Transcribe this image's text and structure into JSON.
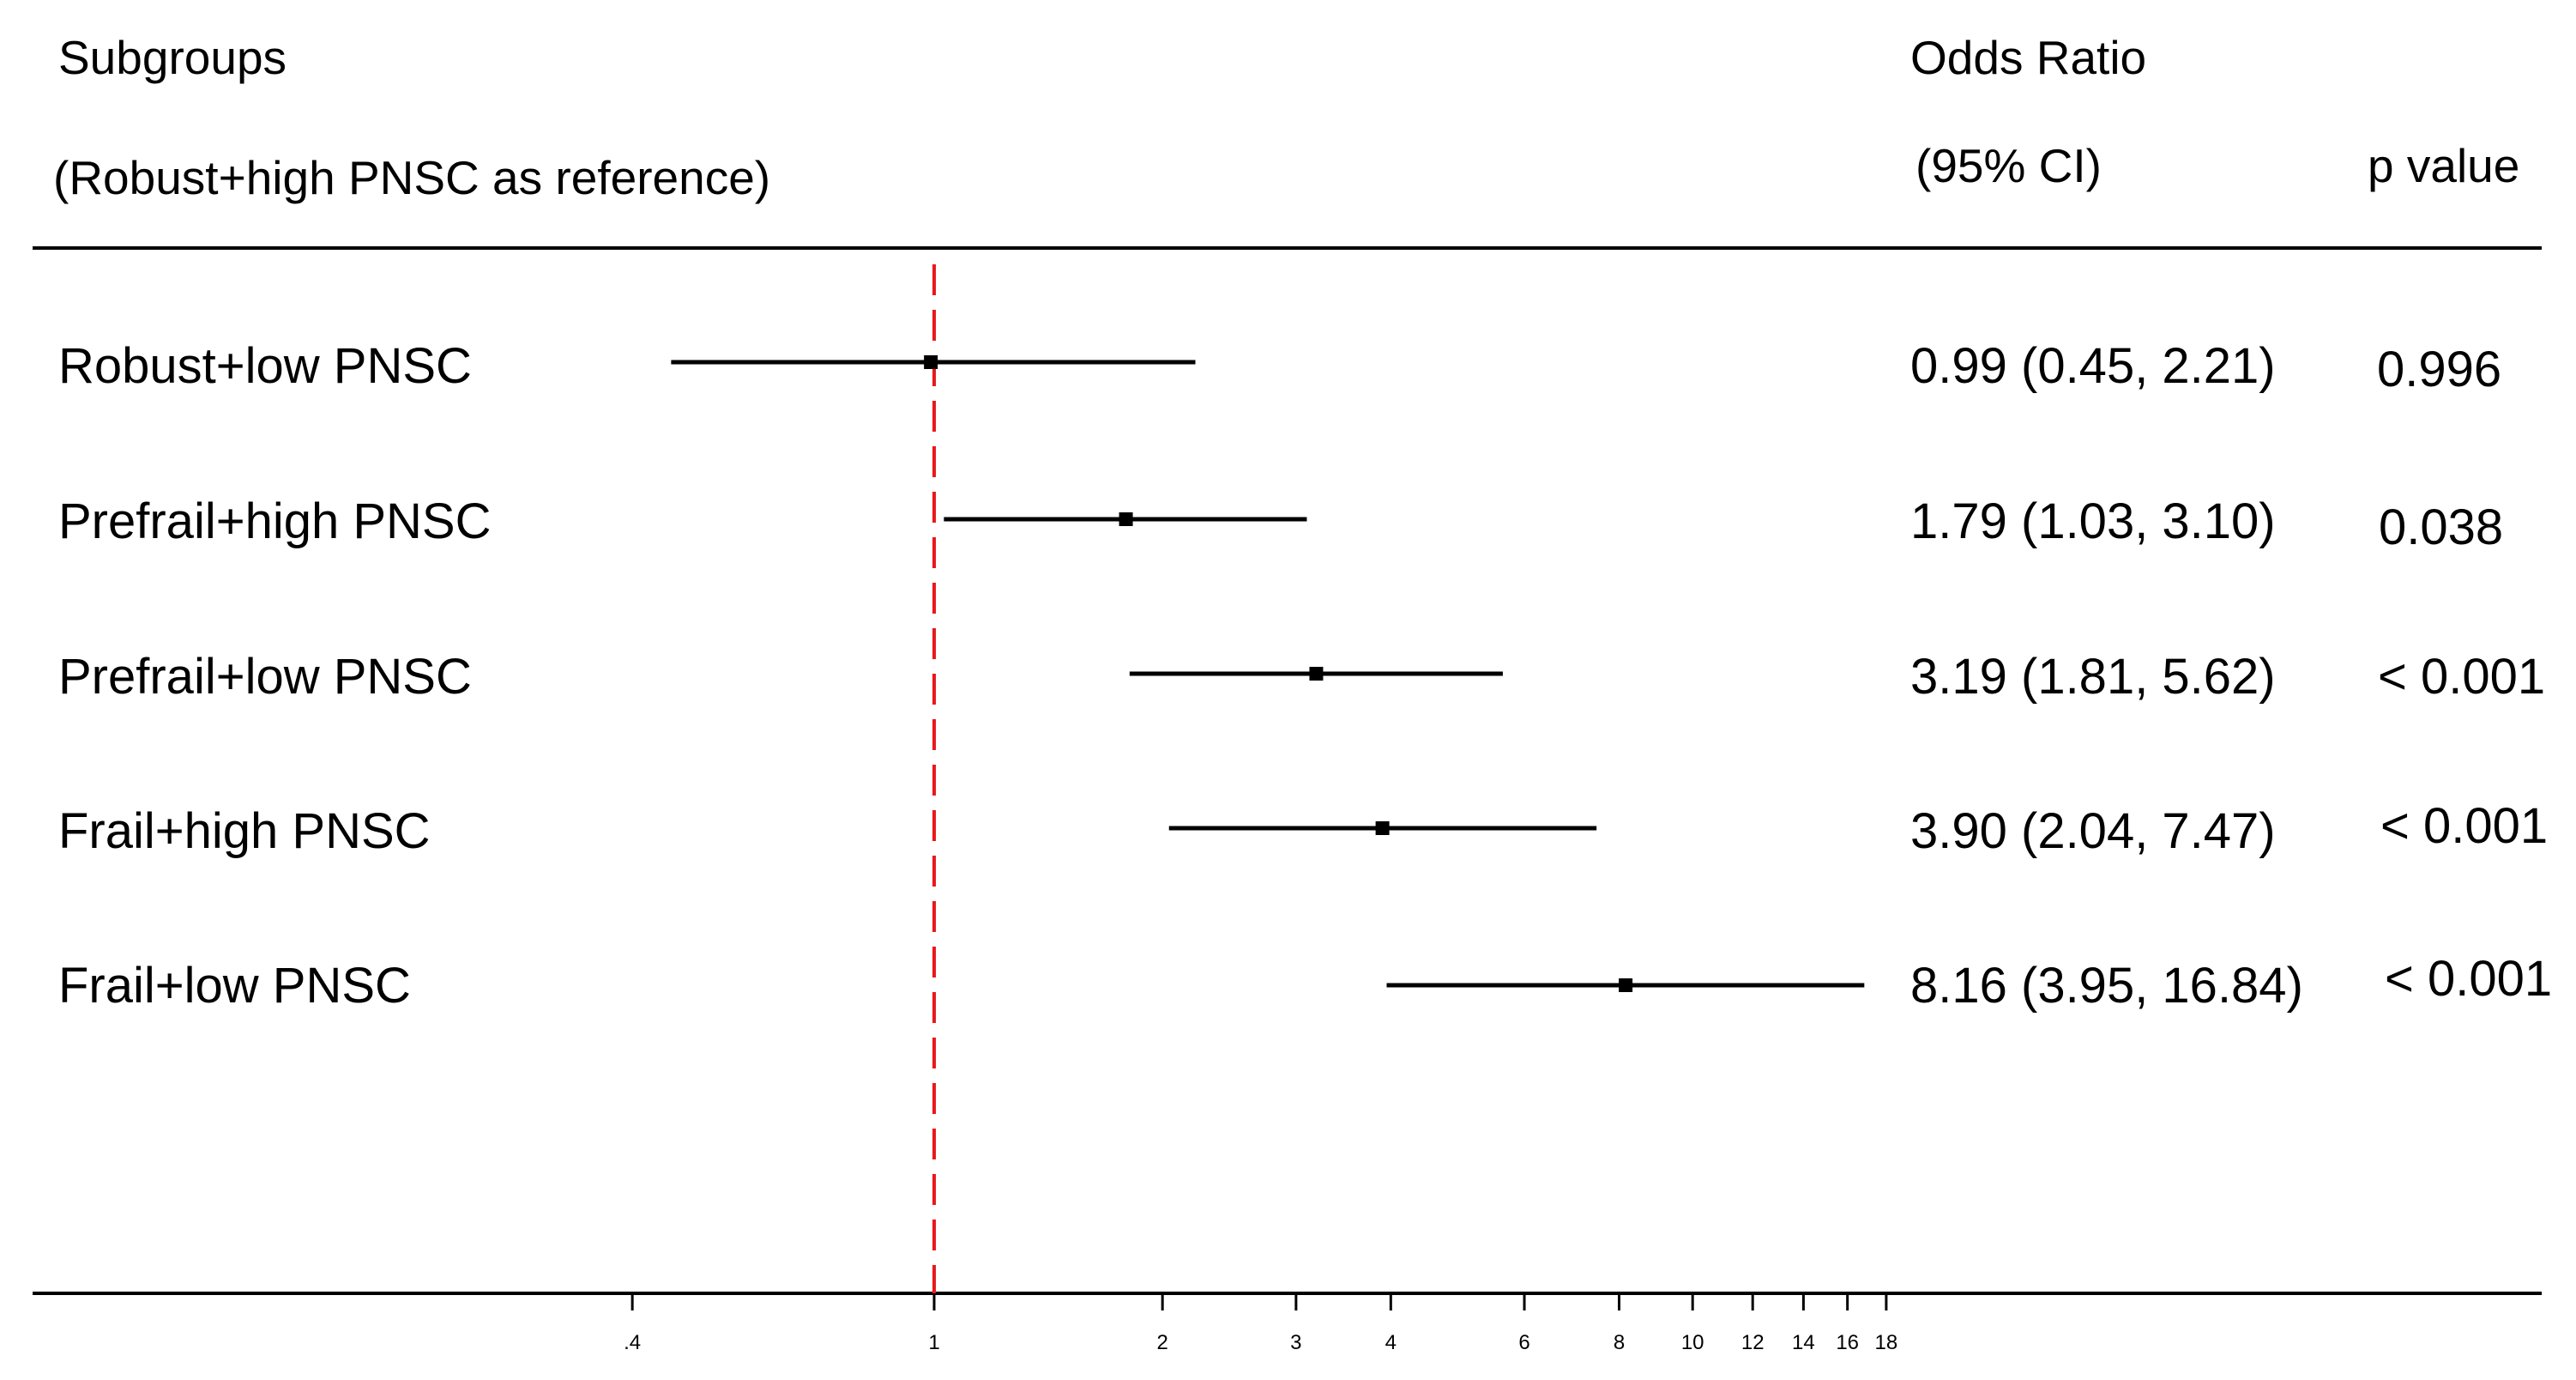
{
  "header": {
    "subgroups": "Subgroups",
    "reference": "(Robust+high PNSC as reference)",
    "odds_ratio": "Odds Ratio",
    "ci": "(95% CI)",
    "p_value": "p value"
  },
  "rows": [
    {
      "label": "Robust+low PNSC",
      "or_text": "0.99 (0.45, 2.21)",
      "p": "0.996"
    },
    {
      "label": "Prefrail+high PNSC",
      "or_text": "1.79 (1.03, 3.10)",
      "p": "0.038"
    },
    {
      "label": "Prefrail+low PNSC",
      "or_text": "3.19 (1.81, 5.62)",
      "p": "< 0.001"
    },
    {
      "label": "Frail+high PNSC",
      "or_text": "3.90 (2.04, 7.47)",
      "p": "< 0.001"
    },
    {
      "label": "Frail+low PNSC",
      "or_text": "8.16 (3.95, 16.84)",
      "p": "< 0.001"
    }
  ],
  "chart_data": {
    "type": "forest",
    "x_scale": "log",
    "reference_value": 1,
    "reference_line_color": "#e8191b",
    "ticks": [
      {
        "value": 0.4,
        "label": ".4"
      },
      {
        "value": 1,
        "label": "1"
      },
      {
        "value": 2,
        "label": "2"
      },
      {
        "value": 3,
        "label": "3"
      },
      {
        "value": 4,
        "label": "4"
      },
      {
        "value": 6,
        "label": "6"
      },
      {
        "value": 8,
        "label": "8"
      },
      {
        "value": 10,
        "label": "10"
      },
      {
        "value": 12,
        "label": "12"
      },
      {
        "value": 14,
        "label": "14"
      },
      {
        "value": 16,
        "label": "16"
      },
      {
        "value": 18,
        "label": "18"
      }
    ],
    "categories": [
      "Robust+low PNSC",
      "Prefrail+high PNSC",
      "Prefrail+low PNSC",
      "Frail+high PNSC",
      "Frail+low PNSC"
    ],
    "estimates": [
      {
        "or": 0.99,
        "lower": 0.45,
        "upper": 2.21
      },
      {
        "or": 1.79,
        "lower": 1.03,
        "upper": 3.1
      },
      {
        "or": 3.19,
        "lower": 1.81,
        "upper": 5.62
      },
      {
        "or": 3.9,
        "lower": 2.04,
        "upper": 7.47
      },
      {
        "or": 8.16,
        "lower": 3.95,
        "upper": 16.84
      }
    ]
  }
}
